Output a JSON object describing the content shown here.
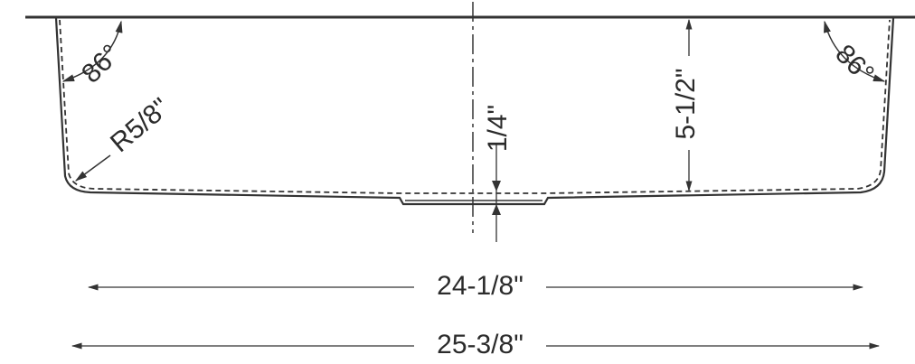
{
  "dimensions": {
    "angle_left": "86°",
    "angle_right": "86°",
    "radius": "R5/8\"",
    "drain_depth": "1/4\"",
    "depth": "5-1/2\"",
    "inner_width": "24-1/8\"",
    "outer_width": "25-3/8\""
  }
}
